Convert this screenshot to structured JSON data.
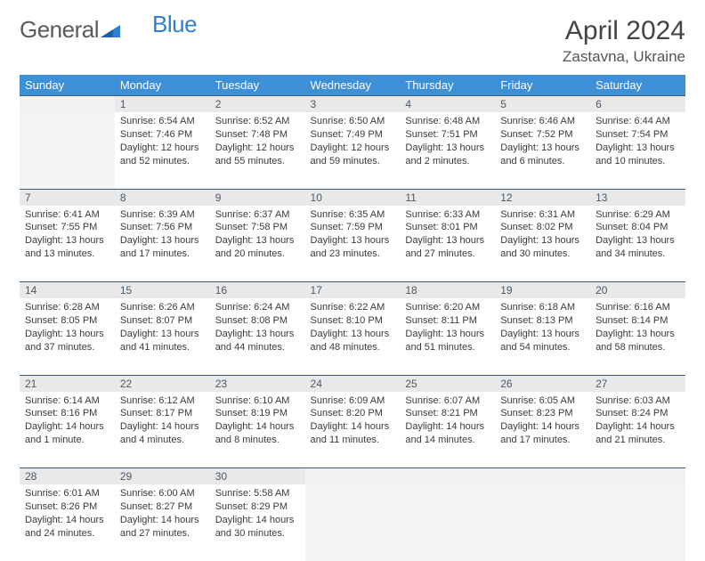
{
  "logo": {
    "text1": "General",
    "text2": "Blue"
  },
  "title": "April 2024",
  "location": "Zastavna, Ukraine",
  "colors": {
    "header_bg": "#3d8fd6",
    "header_text": "#ffffff",
    "daynum_bg": "#e9e9e9",
    "row_divider": "#3d5a7a",
    "text": "#3a3a3a",
    "logo_gray": "#5a5a5a",
    "logo_blue": "#2f7fd1"
  },
  "weekdays": [
    "Sunday",
    "Monday",
    "Tuesday",
    "Wednesday",
    "Thursday",
    "Friday",
    "Saturday"
  ],
  "weeks": [
    {
      "nums": [
        "",
        "1",
        "2",
        "3",
        "4",
        "5",
        "6"
      ],
      "cells": [
        "",
        "Sunrise: 6:54 AM\nSunset: 7:46 PM\nDaylight: 12 hours and 52 minutes.",
        "Sunrise: 6:52 AM\nSunset: 7:48 PM\nDaylight: 12 hours and 55 minutes.",
        "Sunrise: 6:50 AM\nSunset: 7:49 PM\nDaylight: 12 hours and 59 minutes.",
        "Sunrise: 6:48 AM\nSunset: 7:51 PM\nDaylight: 13 hours and 2 minutes.",
        "Sunrise: 6:46 AM\nSunset: 7:52 PM\nDaylight: 13 hours and 6 minutes.",
        "Sunrise: 6:44 AM\nSunset: 7:54 PM\nDaylight: 13 hours and 10 minutes."
      ]
    },
    {
      "nums": [
        "7",
        "8",
        "9",
        "10",
        "11",
        "12",
        "13"
      ],
      "cells": [
        "Sunrise: 6:41 AM\nSunset: 7:55 PM\nDaylight: 13 hours and 13 minutes.",
        "Sunrise: 6:39 AM\nSunset: 7:56 PM\nDaylight: 13 hours and 17 minutes.",
        "Sunrise: 6:37 AM\nSunset: 7:58 PM\nDaylight: 13 hours and 20 minutes.",
        "Sunrise: 6:35 AM\nSunset: 7:59 PM\nDaylight: 13 hours and 23 minutes.",
        "Sunrise: 6:33 AM\nSunset: 8:01 PM\nDaylight: 13 hours and 27 minutes.",
        "Sunrise: 6:31 AM\nSunset: 8:02 PM\nDaylight: 13 hours and 30 minutes.",
        "Sunrise: 6:29 AM\nSunset: 8:04 PM\nDaylight: 13 hours and 34 minutes."
      ]
    },
    {
      "nums": [
        "14",
        "15",
        "16",
        "17",
        "18",
        "19",
        "20"
      ],
      "cells": [
        "Sunrise: 6:28 AM\nSunset: 8:05 PM\nDaylight: 13 hours and 37 minutes.",
        "Sunrise: 6:26 AM\nSunset: 8:07 PM\nDaylight: 13 hours and 41 minutes.",
        "Sunrise: 6:24 AM\nSunset: 8:08 PM\nDaylight: 13 hours and 44 minutes.",
        "Sunrise: 6:22 AM\nSunset: 8:10 PM\nDaylight: 13 hours and 48 minutes.",
        "Sunrise: 6:20 AM\nSunset: 8:11 PM\nDaylight: 13 hours and 51 minutes.",
        "Sunrise: 6:18 AM\nSunset: 8:13 PM\nDaylight: 13 hours and 54 minutes.",
        "Sunrise: 6:16 AM\nSunset: 8:14 PM\nDaylight: 13 hours and 58 minutes."
      ]
    },
    {
      "nums": [
        "21",
        "22",
        "23",
        "24",
        "25",
        "26",
        "27"
      ],
      "cells": [
        "Sunrise: 6:14 AM\nSunset: 8:16 PM\nDaylight: 14 hours and 1 minute.",
        "Sunrise: 6:12 AM\nSunset: 8:17 PM\nDaylight: 14 hours and 4 minutes.",
        "Sunrise: 6:10 AM\nSunset: 8:19 PM\nDaylight: 14 hours and 8 minutes.",
        "Sunrise: 6:09 AM\nSunset: 8:20 PM\nDaylight: 14 hours and 11 minutes.",
        "Sunrise: 6:07 AM\nSunset: 8:21 PM\nDaylight: 14 hours and 14 minutes.",
        "Sunrise: 6:05 AM\nSunset: 8:23 PM\nDaylight: 14 hours and 17 minutes.",
        "Sunrise: 6:03 AM\nSunset: 8:24 PM\nDaylight: 14 hours and 21 minutes."
      ]
    },
    {
      "nums": [
        "28",
        "29",
        "30",
        "",
        "",
        "",
        ""
      ],
      "cells": [
        "Sunrise: 6:01 AM\nSunset: 8:26 PM\nDaylight: 14 hours and 24 minutes.",
        "Sunrise: 6:00 AM\nSunset: 8:27 PM\nDaylight: 14 hours and 27 minutes.",
        "Sunrise: 5:58 AM\nSunset: 8:29 PM\nDaylight: 14 hours and 30 minutes.",
        "",
        "",
        "",
        ""
      ]
    }
  ]
}
